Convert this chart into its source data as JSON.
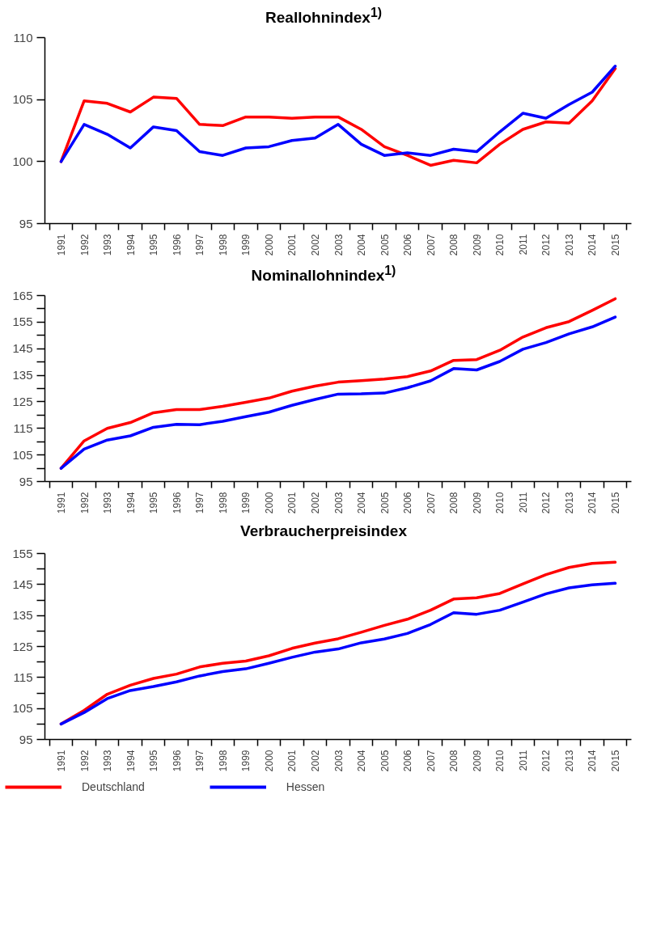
{
  "chart_data": [
    {
      "type": "line",
      "title": "Reallohnindex$^{1)}$",
      "categories": [
        "1991",
        "1992",
        "1993",
        "1994",
        "1995",
        "1996",
        "1997",
        "1998",
        "1999",
        "2000",
        "2001",
        "2002",
        "2003",
        "2004",
        "2005",
        "2006",
        "2007",
        "2008",
        "2009",
        "2010",
        "2011",
        "2012",
        "2013",
        "2014",
        "2015"
      ],
      "ylim": [
        95,
        110
      ],
      "yticks": [
        95,
        100,
        105,
        110
      ],
      "grid": false,
      "series": [
        {
          "color": "#ff0000",
          "values": [
            100,
            104.9,
            104.7,
            104.0,
            105.2,
            105.1,
            103.0,
            102.9,
            103.6,
            103.6,
            103.5,
            103.6,
            103.6,
            102.6,
            101.2,
            100.5,
            99.7,
            100.1,
            99.9,
            101.4,
            102.6,
            103.2,
            103.1,
            104.9,
            107.5
          ]
        },
        {
          "color": "#0000ff",
          "values": [
            100,
            103.0,
            102.2,
            101.1,
            102.8,
            102.5,
            100.8,
            100.5,
            101.1,
            101.2,
            101.7,
            101.9,
            103.0,
            101.4,
            100.5,
            100.7,
            100.5,
            101.0,
            100.8,
            102.4,
            103.9,
            103.5,
            104.6,
            105.6,
            107.7
          ]
        }
      ]
    },
    {
      "type": "line",
      "title": "Nominallohnindex$^{1)}$",
      "categories": [
        "1991",
        "1992",
        "1993",
        "1994",
        "1995",
        "1996",
        "1997",
        "1998",
        "1999",
        "2000",
        "2001",
        "2002",
        "2003",
        "2004",
        "2005",
        "2006",
        "2007",
        "2008",
        "2009",
        "2010",
        "2011",
        "2012",
        "2013",
        "2014",
        "2015"
      ],
      "ylim": [
        95,
        165
      ],
      "yticks": [
        95,
        {
          "value": 100,
          "label": null
        },
        105,
        {
          "value": 110,
          "label": null
        },
        115,
        {
          "value": 120,
          "label": null
        },
        125,
        {
          "value": 130,
          "label": null
        },
        135,
        {
          "value": 140,
          "label": null
        },
        145,
        {
          "value": 150,
          "label": null
        },
        155,
        {
          "value": 160,
          "label": null
        },
        165
      ],
      "grid": false,
      "series": [
        {
          "color": "#ff0000",
          "values": [
            100,
            110.3,
            115.0,
            117.2,
            120.9,
            122.1,
            122.1,
            123.3,
            124.8,
            126.4,
            129.0,
            130.9,
            132.4,
            133.0,
            133.6,
            134.5,
            136.6,
            140.6,
            140.9,
            144.4,
            149.4,
            152.9,
            155.2,
            159.4,
            163.8
          ]
        },
        {
          "color": "#0000ff",
          "values": [
            100,
            107.2,
            110.6,
            112.2,
            115.4,
            116.5,
            116.4,
            117.7,
            119.4,
            121.1,
            123.7,
            125.9,
            127.9,
            128.0,
            128.3,
            130.3,
            132.9,
            137.5,
            137.0,
            140.2,
            144.8,
            147.3,
            150.6,
            153.2,
            156.9
          ]
        }
      ]
    },
    {
      "type": "line",
      "title": "Verbraucherpreisindex",
      "categories": [
        "1991",
        "1992",
        "1993",
        "1994",
        "1995",
        "1996",
        "1997",
        "1998",
        "1999",
        "2000",
        "2001",
        "2002",
        "2003",
        "2004",
        "2005",
        "2006",
        "2007",
        "2008",
        "2009",
        "2010",
        "2011",
        "2012",
        "2013",
        "2014",
        "2015"
      ],
      "ylim": [
        95,
        155
      ],
      "yticks": [
        95,
        {
          "value": 100,
          "label": null
        },
        105,
        {
          "value": 110,
          "label": null
        },
        115,
        {
          "value": 120,
          "label": null
        },
        125,
        {
          "value": 130,
          "label": null
        },
        135,
        {
          "value": 140,
          "label": null
        },
        145,
        {
          "value": 150,
          "label": null
        },
        155
      ],
      "grid": false,
      "legend": "bottom left",
      "series": [
        {
          "name": "Deutschland",
          "color": "#ff0000",
          "values": [
            100,
            104.4,
            109.6,
            112.5,
            114.7,
            116.1,
            118.4,
            119.6,
            120.3,
            122.0,
            124.4,
            126.1,
            127.5,
            129.6,
            131.8,
            133.8,
            136.7,
            140.3,
            140.7,
            142.1,
            145.2,
            148.2,
            150.5,
            151.8,
            152.2
          ]
        },
        {
          "name": "Hessen",
          "color": "#0000ff",
          "values": [
            100,
            103.7,
            108.2,
            110.8,
            112.1,
            113.6,
            115.5,
            116.9,
            117.8,
            119.6,
            121.5,
            123.2,
            124.2,
            126.2,
            127.4,
            129.2,
            132.1,
            135.9,
            135.4,
            136.7,
            139.3,
            142.0,
            143.9,
            144.9,
            145.4
          ]
        }
      ]
    }
  ]
}
